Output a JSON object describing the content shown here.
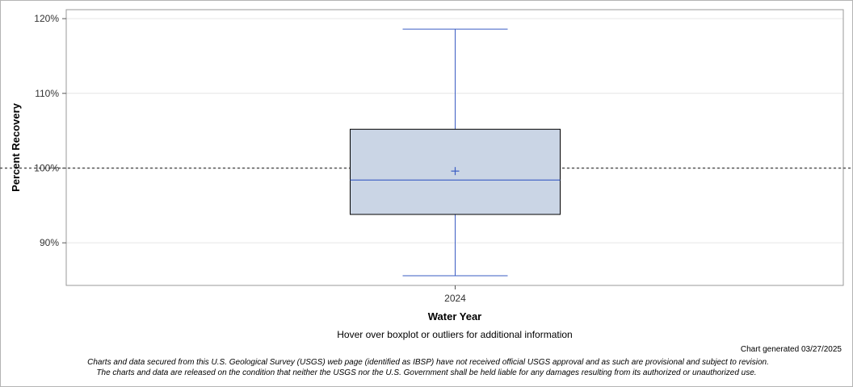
{
  "chart_data": {
    "type": "boxplot",
    "ylabel": "Percent Recovery",
    "xlabel": "Water Year",
    "categories": [
      "2024"
    ],
    "y_ticks": [
      "90%",
      "100%",
      "110%",
      "120%"
    ],
    "y_tick_values": [
      90,
      100,
      110,
      120
    ],
    "ylim": [
      84.3,
      121.2
    ],
    "reference_line": 100,
    "boxes": [
      {
        "category": "2024",
        "whisker_low": 85.6,
        "q1": 93.8,
        "median": 98.4,
        "mean": 99.6,
        "q3": 105.2,
        "whisker_high": 118.6
      }
    ],
    "grid": true,
    "colors": {
      "box_fill": "#cad5e5",
      "box_edge": "#000000",
      "median_whisker": "#3a5cc3",
      "reference": "#555555",
      "grid": "#e6e6e6"
    }
  },
  "hover_note": "Hover over boxplot or outliers for additional information",
  "generated": "Chart generated 03/27/2025",
  "disclaimer_line1": "Charts and data secured from this U.S. Geological Survey (USGS) web page (identified as IBSP) have not received official USGS approval and as such are provisional and subject to revision.",
  "disclaimer_line2": "The charts and data are released on the condition that neither the USGS nor the U.S. Government shall be held liable for any damages resulting from its authorized or unauthorized use."
}
